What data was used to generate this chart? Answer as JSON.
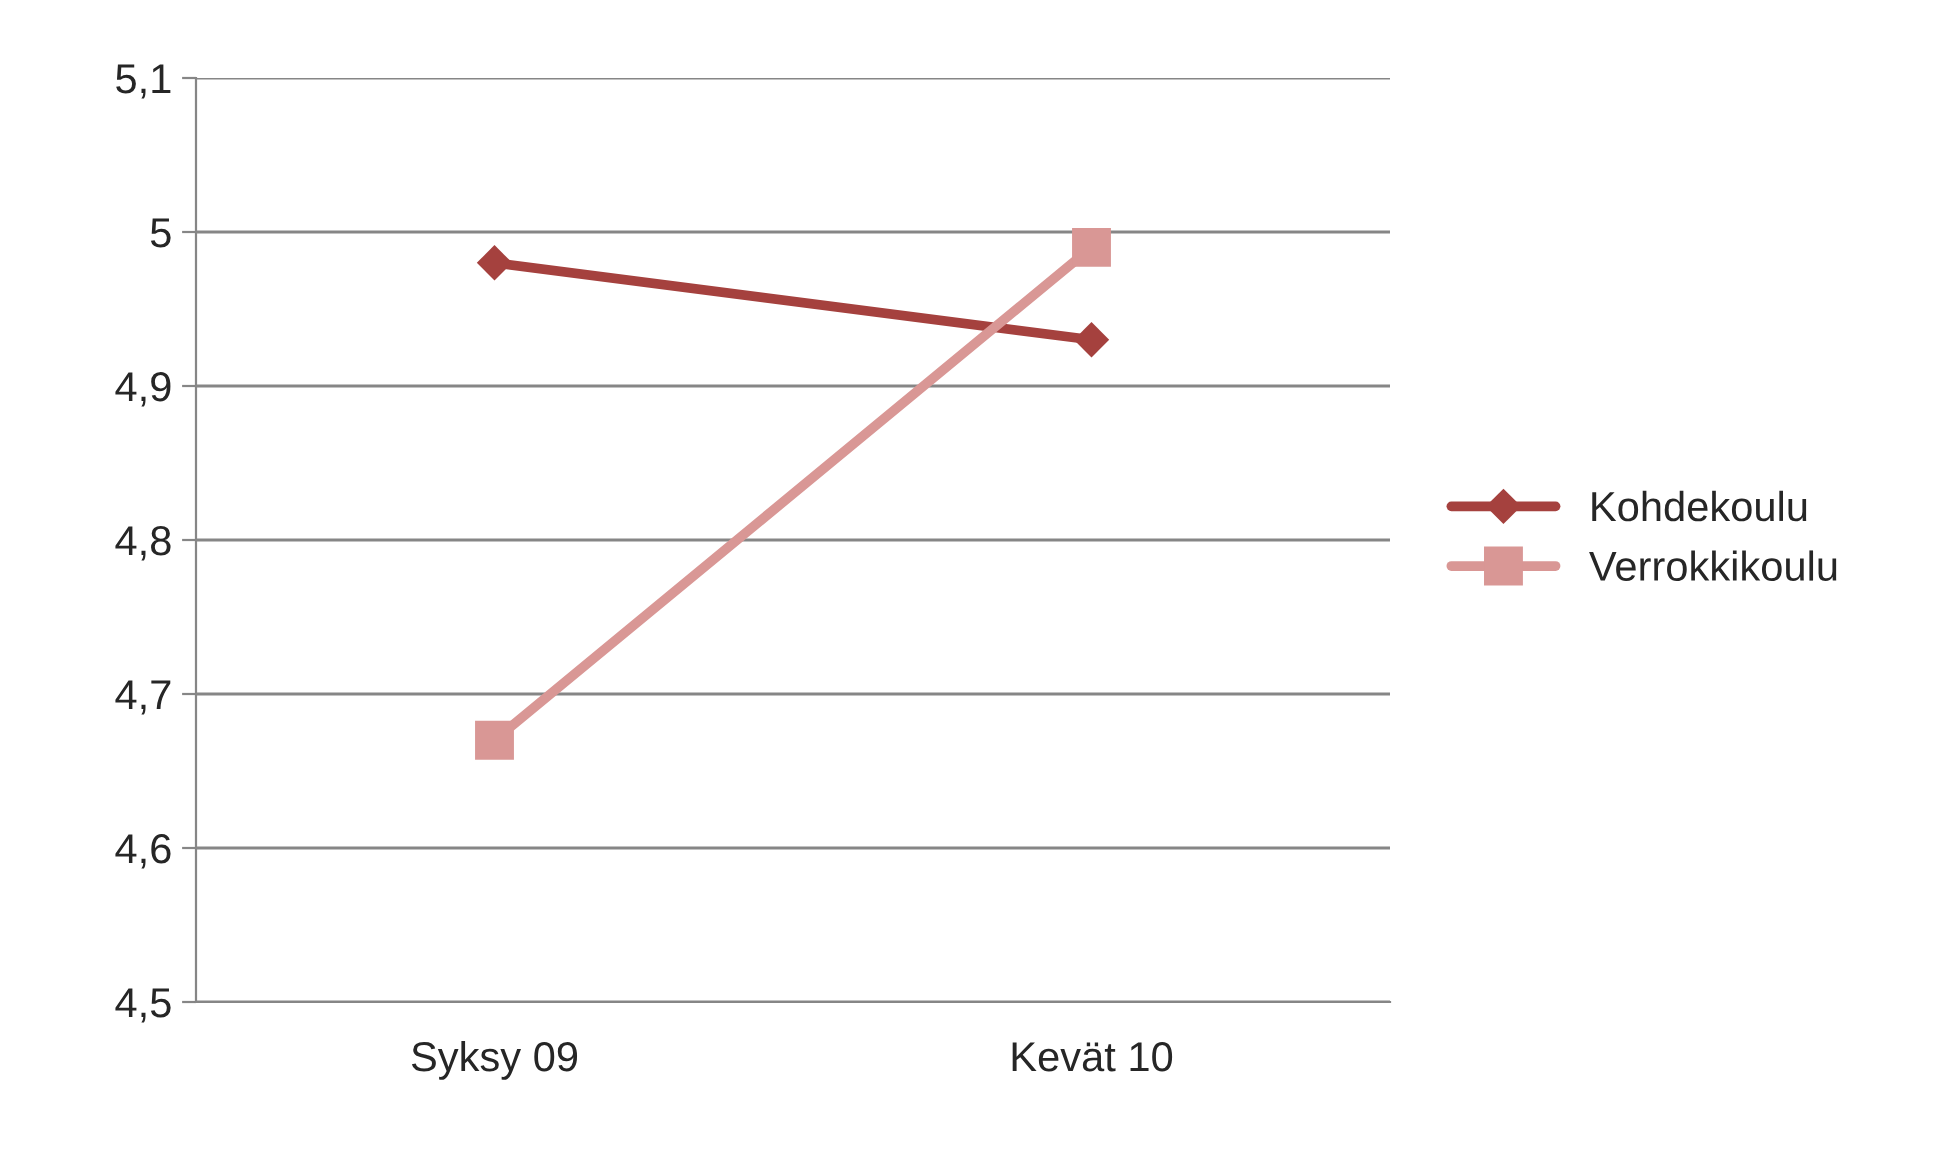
{
  "chart_data": {
    "type": "line",
    "categories": [
      "Syksy 09",
      "Kevät 10"
    ],
    "series": [
      {
        "name": "Kohdekoulu",
        "color": "#a5413e",
        "values": [
          4.98,
          4.93
        ],
        "marker": "diamond"
      },
      {
        "name": "Verrokkikoulu",
        "color": "#d99795",
        "values": [
          4.67,
          4.99
        ],
        "marker": "square"
      }
    ],
    "ylim": [
      4.5,
      5.1
    ],
    "yticks": [
      {
        "value": 4.5,
        "label": "4,5"
      },
      {
        "value": 4.6,
        "label": "4,6"
      },
      {
        "value": 4.7,
        "label": "4,7"
      },
      {
        "value": 4.8,
        "label": "4,8"
      },
      {
        "value": 4.9,
        "label": "4,9"
      },
      {
        "value": 5,
        "label": "5"
      },
      {
        "value": 5.1,
        "label": "5,1"
      }
    ],
    "grid": "y",
    "legend": "right"
  }
}
